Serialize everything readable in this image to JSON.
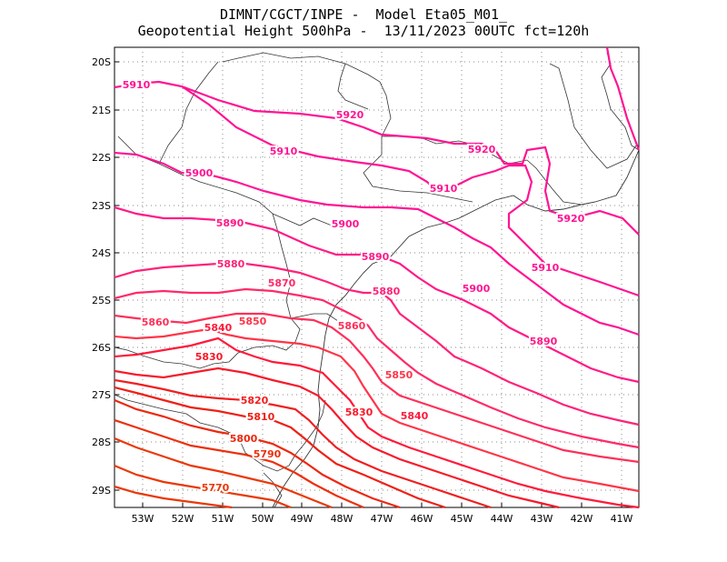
{
  "header": {
    "line1": "DIMNT/CGCT/INPE -  Model Eta05_M01_",
    "line2": "Geopotential Height 500hPa -  13/11/2023 00UTC fct=120h"
  },
  "map": {
    "lon_range": [
      -53.6,
      -40.5
    ],
    "lat_range": [
      -29.4,
      -19.7
    ],
    "lon_ticks": [
      "53W",
      "52W",
      "51W",
      "50W",
      "49W",
      "48W",
      "47W",
      "46W",
      "45W",
      "44W",
      "43W",
      "42W",
      "41W"
    ],
    "lat_ticks": [
      "20S",
      "21S",
      "22S",
      "23S",
      "24S",
      "25S",
      "26S",
      "27S",
      "28S",
      "29S"
    ]
  },
  "contours": [
    {
      "level": "5920",
      "color": "#ff1493"
    },
    {
      "level": "5910",
      "color": "#ff1493"
    },
    {
      "level": "5900",
      "color": "#ff1493"
    },
    {
      "level": "5890",
      "color": "#ff1a88"
    },
    {
      "level": "5880",
      "color": "#ff2278"
    },
    {
      "level": "5870",
      "color": "#ff2a68"
    },
    {
      "level": "5860",
      "color": "#ff2f58"
    },
    {
      "level": "5850",
      "color": "#ff3548"
    },
    {
      "level": "5840",
      "color": "#ff1a3a"
    },
    {
      "level": "5830",
      "color": "#f71a2a"
    },
    {
      "level": "5820",
      "color": "#f01e20"
    },
    {
      "level": "5810",
      "color": "#ee2016"
    },
    {
      "level": "5800",
      "color": "#ec2810"
    },
    {
      "level": "5790",
      "color": "#ec300c"
    },
    {
      "level": "5770",
      "color": "#ea3808"
    }
  ]
}
